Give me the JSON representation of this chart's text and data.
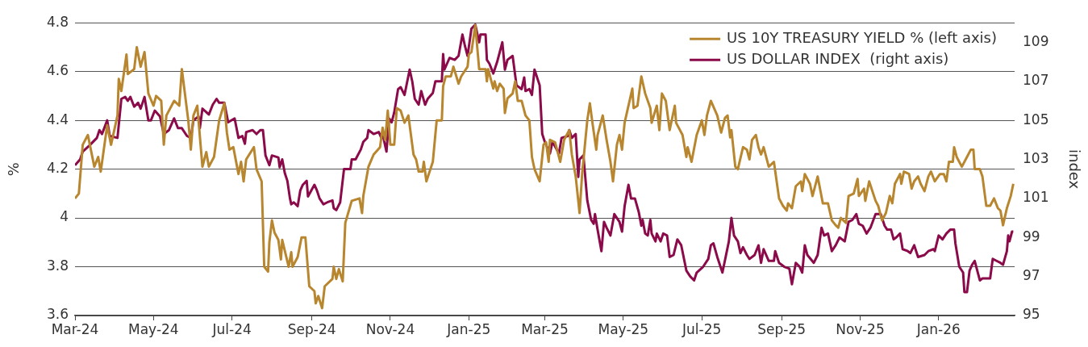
{
  "chart_data": {
    "type": "line",
    "ylabel": "%",
    "y2label": "index",
    "legend": "top right",
    "grid": "y",
    "marker": "none",
    "line_style": "solid",
    "xlim": [
      "2024-03-01",
      "2026-03-01"
    ],
    "xticks": [
      {
        "value": "2024-03-01",
        "label": "Mar-24"
      },
      {
        "value": "2024-05-01",
        "label": "May-24"
      },
      {
        "value": "2024-07-01",
        "label": "Jul-24"
      },
      {
        "value": "2024-09-01",
        "label": "Sep-24"
      },
      {
        "value": "2024-11-01",
        "label": "Nov-24"
      },
      {
        "value": "2025-01-01",
        "label": "Jan-25"
      },
      {
        "value": "2025-03-01",
        "label": "Mar-25"
      },
      {
        "value": "2025-05-01",
        "label": "May-25"
      },
      {
        "value": "2025-07-01",
        "label": "Jul-25"
      },
      {
        "value": "2025-09-01",
        "label": "Sep-25"
      },
      {
        "value": "2025-11-01",
        "label": "Nov-25"
      },
      {
        "value": "2026-01-01",
        "label": "Jan-26"
      }
    ],
    "ylim": [
      3.6,
      4.8
    ],
    "yticks": [
      3.6,
      3.8,
      4,
      4.2,
      4.4,
      4.6,
      4.8
    ],
    "y2lim": [
      95,
      110
    ],
    "y2ticks": [
      95,
      97,
      99,
      101,
      103,
      105,
      107,
      109
    ],
    "series": [
      {
        "name": "US 10Y TREASURY YIELD % (left axis)",
        "color": "#b8862f",
        "x": [
          "2024-03-01",
          "2024-03-04",
          "2024-03-07",
          "2024-03-11",
          "2024-03-16",
          "2024-03-19",
          "2024-03-21",
          "2024-03-26",
          "2024-03-29",
          "2024-04-03",
          "2024-04-04",
          "2024-04-06",
          "2024-04-10",
          "2024-04-11",
          "2024-04-16",
          "2024-04-18",
          "2024-04-21",
          "2024-04-24",
          "2024-04-27",
          "2024-05-01",
          "2024-05-03",
          "2024-05-07",
          "2024-05-09",
          "2024-05-11",
          "2024-05-17",
          "2024-05-21",
          "2024-05-23",
          "2024-05-28",
          "2024-05-30",
          "2024-06-01",
          "2024-06-04",
          "2024-06-08",
          "2024-06-11",
          "2024-06-13",
          "2024-06-17",
          "2024-06-21",
          "2024-06-25",
          "2024-06-27",
          "2024-06-29",
          "2024-07-02",
          "2024-07-06",
          "2024-07-08",
          "2024-07-10",
          "2024-07-12",
          "2024-07-18",
          "2024-07-20",
          "2024-07-24",
          "2024-07-26",
          "2024-07-29",
          "2024-07-30",
          "2024-08-01",
          "2024-08-03",
          "2024-08-06",
          "2024-08-08",
          "2024-08-09",
          "2024-08-14",
          "2024-08-16",
          "2024-08-17",
          "2024-08-21",
          "2024-08-24",
          "2024-08-27",
          "2024-08-30",
          "2024-09-03",
          "2024-09-04",
          "2024-09-06",
          "2024-09-09",
          "2024-09-11",
          "2024-09-17",
          "2024-09-18",
          "2024-09-20",
          "2024-09-22",
          "2024-09-25",
          "2024-09-27",
          "2024-10-02",
          "2024-10-08",
          "2024-10-10",
          "2024-10-11",
          "2024-10-15",
          "2024-10-19",
          "2024-10-24",
          "2024-10-26",
          "2024-10-28",
          "2024-10-30",
          "2024-11-01",
          "2024-11-04",
          "2024-11-06",
          "2024-11-09",
          "2024-11-12",
          "2024-11-15",
          "2024-11-19",
          "2024-11-21",
          "2024-11-23",
          "2024-11-26",
          "2024-11-27",
          "2024-11-29",
          "2024-12-04",
          "2024-12-07",
          "2024-12-11",
          "2024-12-12",
          "2024-12-14",
          "2024-12-18",
          "2024-12-20",
          "2024-12-24",
          "2024-12-26",
          "2024-12-31",
          "2025-01-01",
          "2025-01-03",
          "2025-01-06",
          "2025-01-09",
          "2025-01-14",
          "2025-01-15",
          "2025-01-16",
          "2025-01-20",
          "2025-01-21",
          "2025-01-23",
          "2025-01-25",
          "2025-01-28",
          "2025-01-29",
          "2025-01-31",
          "2025-02-04",
          "2025-02-06",
          "2025-02-08",
          "2025-02-11",
          "2025-02-14",
          "2025-02-17",
          "2025-02-19",
          "2025-02-21",
          "2025-02-25",
          "2025-02-28",
          "2025-03-02",
          "2025-03-04",
          "2025-03-05",
          "2025-03-09",
          "2025-03-13",
          "2025-03-16",
          "2025-03-20",
          "2025-03-22",
          "2025-03-25",
          "2025-03-28",
          "2025-03-30",
          "2025-04-01",
          "2025-04-03",
          "2025-04-05",
          "2025-04-07",
          "2025-04-10",
          "2025-04-11",
          "2025-04-15",
          "2025-04-18",
          "2025-04-21",
          "2025-04-23",
          "2025-04-26",
          "2025-04-28",
          "2025-04-30",
          "2025-05-02",
          "2025-05-08",
          "2025-05-09",
          "2025-05-12",
          "2025-05-15",
          "2025-05-18",
          "2025-05-22",
          "2025-05-23",
          "2025-05-27",
          "2025-05-29",
          "2025-05-31",
          "2025-06-03",
          "2025-06-06",
          "2025-06-10",
          "2025-06-11",
          "2025-06-16",
          "2025-06-19",
          "2025-06-20",
          "2025-06-23",
          "2025-06-27",
          "2025-07-01",
          "2025-07-03",
          "2025-07-05",
          "2025-07-08",
          "2025-07-13",
          "2025-07-16",
          "2025-07-19",
          "2025-07-21",
          "2025-07-23",
          "2025-07-24",
          "2025-07-27",
          "2025-07-29",
          "2025-08-02",
          "2025-08-05",
          "2025-08-07",
          "2025-08-09",
          "2025-08-12",
          "2025-08-14",
          "2025-08-16",
          "2025-08-18",
          "2025-08-22",
          "2025-08-26",
          "2025-08-30",
          "2025-09-02",
          "2025-09-05",
          "2025-09-06",
          "2025-09-09",
          "2025-09-12",
          "2025-09-16",
          "2025-09-17",
          "2025-09-19",
          "2025-09-23",
          "2025-09-25",
          "2025-09-29",
          "2025-10-03",
          "2025-10-07",
          "2025-10-10",
          "2025-10-13",
          "2025-10-15",
          "2025-10-17",
          "2025-10-21",
          "2025-10-23",
          "2025-10-27",
          "2025-10-30",
          "2025-10-31",
          "2025-11-04",
          "2025-11-05",
          "2025-11-08",
          "2025-11-13",
          "2025-11-15",
          "2025-11-18",
          "2025-11-21",
          "2025-11-24",
          "2025-11-26",
          "2025-11-28",
          "2025-12-02",
          "2025-12-03",
          "2025-12-05",
          "2025-12-09",
          "2025-12-11",
          "2025-12-13",
          "2025-12-16",
          "2025-12-18",
          "2025-12-21",
          "2025-12-24",
          "2025-12-26",
          "2025-12-29",
          "2026-01-02",
          "2026-01-05",
          "2026-01-07",
          "2026-01-09",
          "2026-01-12",
          "2026-01-13",
          "2026-01-15",
          "2026-01-19",
          "2026-01-23",
          "2026-01-26",
          "2026-01-28",
          "2026-01-29",
          "2026-02-02",
          "2026-02-04",
          "2026-02-07",
          "2026-02-10",
          "2026-02-13",
          "2026-02-16",
          "2026-02-18",
          "2026-02-20",
          "2026-02-23",
          "2026-02-26",
          "2026-02-28"
        ],
        "values": [
          4.08,
          4.1,
          4.3,
          4.34,
          4.21,
          4.25,
          4.19,
          4.38,
          4.3,
          4.42,
          4.57,
          4.52,
          4.67,
          4.59,
          4.61,
          4.7,
          4.62,
          4.68,
          4.51,
          4.46,
          4.5,
          4.48,
          4.3,
          4.42,
          4.48,
          4.46,
          4.61,
          4.4,
          4.28,
          4.42,
          4.46,
          4.21,
          4.27,
          4.21,
          4.25,
          4.4,
          4.47,
          4.35,
          4.28,
          4.29,
          4.18,
          4.23,
          4.15,
          4.24,
          4.29,
          4.2,
          4.15,
          3.8,
          3.78,
          3.9,
          3.99,
          3.94,
          3.91,
          3.83,
          3.91,
          3.8,
          3.86,
          3.8,
          3.84,
          3.92,
          3.92,
          3.72,
          3.7,
          3.65,
          3.68,
          3.63,
          3.72,
          3.75,
          3.8,
          3.75,
          3.79,
          3.74,
          3.98,
          4.07,
          4.08,
          4.02,
          4.09,
          4.21,
          4.26,
          4.29,
          4.37,
          4.32,
          4.44,
          4.3,
          4.3,
          4.45,
          4.44,
          4.39,
          4.42,
          4.26,
          4.24,
          4.19,
          4.19,
          4.23,
          4.15,
          4.23,
          4.4,
          4.4,
          4.54,
          4.58,
          4.58,
          4.62,
          4.55,
          4.58,
          4.62,
          4.67,
          4.68,
          4.79,
          4.61,
          4.61,
          4.56,
          4.61,
          4.53,
          4.56,
          4.52,
          4.55,
          4.53,
          4.43,
          4.49,
          4.51,
          4.56,
          4.48,
          4.48,
          4.42,
          4.4,
          4.25,
          4.2,
          4.15,
          4.3,
          4.31,
          4.23,
          4.32,
          4.31,
          4.23,
          4.32,
          4.36,
          4.26,
          4.17,
          4.02,
          4.18,
          4.29,
          4.4,
          4.47,
          4.39,
          4.28,
          4.34,
          4.42,
          4.32,
          4.23,
          4.15,
          4.3,
          4.34,
          4.28,
          4.39,
          4.53,
          4.45,
          4.46,
          4.58,
          4.51,
          4.45,
          4.39,
          4.46,
          4.36,
          4.51,
          4.48,
          4.36,
          4.46,
          4.39,
          4.34,
          4.25,
          4.29,
          4.23,
          4.34,
          4.4,
          4.34,
          4.42,
          4.48,
          4.42,
          4.35,
          4.41,
          4.42,
          4.33,
          4.36,
          4.21,
          4.2,
          4.29,
          4.28,
          4.24,
          4.32,
          4.34,
          4.29,
          4.26,
          4.29,
          4.21,
          4.23,
          4.08,
          4.05,
          4.03,
          4.06,
          4.04,
          4.13,
          4.15,
          4.11,
          4.18,
          4.14,
          4.09,
          4.17,
          4.06,
          4.06,
          3.99,
          3.97,
          3.96,
          4.0,
          3.98,
          4.09,
          4.1,
          4.16,
          4.09,
          4.12,
          4.07,
          4.15,
          4.07,
          4.05,
          3.99,
          4.02,
          4.09,
          4.06,
          4.14,
          4.18,
          4.14,
          4.19,
          4.18,
          4.12,
          4.15,
          4.17,
          4.14,
          4.11,
          4.17,
          4.19,
          4.15,
          4.18,
          4.18,
          4.15,
          4.23,
          4.23,
          4.29,
          4.25,
          4.21,
          4.25,
          4.28,
          4.28,
          4.2,
          4.2,
          4.17,
          4.05,
          4.05,
          4.08,
          4.04,
          4.03,
          3.97,
          4.04,
          4.09,
          4.14
        ]
      },
      {
        "name": "US DOLLAR INDEX  (right axis)",
        "color": "#8b0a4a",
        "axis": "y2",
        "x": [
          "2024-03-01",
          "2024-03-05",
          "2024-03-07",
          "2024-03-12",
          "2024-03-18",
          "2024-03-20",
          "2024-03-22",
          "2024-03-26",
          "2024-03-28",
          "2024-04-03",
          "2024-04-06",
          "2024-04-09",
          "2024-04-11",
          "2024-04-13",
          "2024-04-16",
          "2024-04-19",
          "2024-04-21",
          "2024-04-24",
          "2024-04-27",
          "2024-04-29",
          "2024-05-02",
          "2024-05-06",
          "2024-05-09",
          "2024-05-13",
          "2024-05-17",
          "2024-05-20",
          "2024-05-23",
          "2024-05-27",
          "2024-05-30",
          "2024-06-01",
          "2024-06-05",
          "2024-06-06",
          "2024-06-08",
          "2024-06-13",
          "2024-06-16",
          "2024-06-19",
          "2024-06-21",
          "2024-06-25",
          "2024-06-28",
          "2024-07-03",
          "2024-07-06",
          "2024-07-09",
          "2024-07-11",
          "2024-07-12",
          "2024-07-17",
          "2024-07-20",
          "2024-07-23",
          "2024-07-25",
          "2024-07-27",
          "2024-07-30",
          "2024-08-01",
          "2024-08-06",
          "2024-08-07",
          "2024-08-09",
          "2024-08-11",
          "2024-08-13",
          "2024-08-15",
          "2024-08-16",
          "2024-08-18",
          "2024-08-21",
          "2024-08-23",
          "2024-08-25",
          "2024-08-28",
          "2024-08-29",
          "2024-09-03",
          "2024-09-05",
          "2024-09-07",
          "2024-09-10",
          "2024-09-13",
          "2024-09-17",
          "2024-09-18",
          "2024-09-20",
          "2024-09-23",
          "2024-09-26",
          "2024-10-01",
          "2024-10-02",
          "2024-10-05",
          "2024-10-09",
          "2024-10-11",
          "2024-10-14",
          "2024-10-15",
          "2024-10-19",
          "2024-10-23",
          "2024-10-25",
          "2024-10-26",
          "2024-10-29",
          "2024-10-31",
          "2024-11-02",
          "2024-11-04",
          "2024-11-07",
          "2024-11-09",
          "2024-11-12",
          "2024-11-16",
          "2024-11-18",
          "2024-11-20",
          "2024-11-23",
          "2024-11-25",
          "2024-11-28",
          "2024-11-30",
          "2024-12-04",
          "2024-12-06",
          "2024-12-11",
          "2024-12-12",
          "2024-12-13",
          "2024-12-17",
          "2024-12-21",
          "2024-12-24",
          "2024-12-27",
          "2024-12-29",
          "2024-12-31",
          "2025-01-03",
          "2025-01-06",
          "2025-01-09",
          "2025-01-10",
          "2025-01-14",
          "2025-01-15",
          "2025-01-17",
          "2025-01-20",
          "2025-01-23",
          "2025-01-27",
          "2025-01-29",
          "2025-01-31",
          "2025-02-04",
          "2025-02-07",
          "2025-02-11",
          "2025-02-13",
          "2025-02-14",
          "2025-02-17",
          "2025-02-19",
          "2025-02-21",
          "2025-02-25",
          "2025-02-27",
          "2025-03-01",
          "2025-03-05",
          "2025-03-07",
          "2025-03-12",
          "2025-03-14",
          "2025-03-19",
          "2025-03-20",
          "2025-03-22",
          "2025-03-25",
          "2025-03-27",
          "2025-03-28",
          "2025-03-31",
          "2025-04-03",
          "2025-04-06",
          "2025-04-08",
          "2025-04-09",
          "2025-04-11",
          "2025-04-14",
          "2025-04-16",
          "2025-04-18",
          "2025-04-21",
          "2025-04-24",
          "2025-04-28",
          "2025-04-30",
          "2025-05-02",
          "2025-05-05",
          "2025-05-07",
          "2025-05-10",
          "2025-05-13",
          "2025-05-15",
          "2025-05-16",
          "2025-05-18",
          "2025-05-20",
          "2025-05-22",
          "2025-05-23",
          "2025-05-26",
          "2025-05-27",
          "2025-05-30",
          "2025-06-01",
          "2025-06-04",
          "2025-06-06",
          "2025-06-09",
          "2025-06-12",
          "2025-06-15",
          "2025-06-19",
          "2025-06-22",
          "2025-06-25",
          "2025-06-27",
          "2025-07-02",
          "2025-07-06",
          "2025-07-08",
          "2025-07-10",
          "2025-07-13",
          "2025-07-17",
          "2025-07-22",
          "2025-07-24",
          "2025-07-26",
          "2025-07-29",
          "2025-07-31",
          "2025-08-02",
          "2025-08-05",
          "2025-08-07",
          "2025-08-11",
          "2025-08-14",
          "2025-08-16",
          "2025-08-18",
          "2025-08-22",
          "2025-08-26",
          "2025-08-27",
          "2025-08-30",
          "2025-09-03",
          "2025-09-07",
          "2025-09-09",
          "2025-09-12",
          "2025-09-15",
          "2025-09-17",
          "2025-09-19",
          "2025-09-21",
          "2025-09-26",
          "2025-09-29",
          "2025-10-02",
          "2025-10-04",
          "2025-10-07",
          "2025-10-10",
          "2025-10-13",
          "2025-10-16",
          "2025-10-20",
          "2025-10-23",
          "2025-10-26",
          "2025-10-29",
          "2025-10-31",
          "2025-11-03",
          "2025-11-06",
          "2025-11-09",
          "2025-11-13",
          "2025-11-17",
          "2025-11-20",
          "2025-11-22",
          "2025-11-25",
          "2025-11-27",
          "2025-11-29",
          "2025-12-02",
          "2025-12-04",
          "2025-12-08",
          "2025-12-10",
          "2025-12-13",
          "2025-12-16",
          "2025-12-21",
          "2025-12-24",
          "2025-12-28",
          "2025-12-29",
          "2026-01-01",
          "2026-01-04",
          "2026-01-07",
          "2026-01-10",
          "2026-01-13",
          "2026-01-14",
          "2026-01-17",
          "2026-01-20",
          "2026-01-21",
          "2026-01-23",
          "2026-01-25",
          "2026-01-27",
          "2026-01-29",
          "2026-02-02",
          "2026-02-04",
          "2026-02-10",
          "2026-02-12",
          "2026-02-15",
          "2026-02-18",
          "2026-02-20",
          "2026-02-23",
          "2026-02-24",
          "2026-02-25",
          "2026-02-27",
          "2026-02-28"
        ],
        "values": [
          102.7,
          103.0,
          103.4,
          103.7,
          104.1,
          104.5,
          104.3,
          105.0,
          104.2,
          104.1,
          106.1,
          106.2,
          106.0,
          106.2,
          105.7,
          105.9,
          105.6,
          106.2,
          105.0,
          105.0,
          105.5,
          105.2,
          104.3,
          104.5,
          105.1,
          104.6,
          104.6,
          104.2,
          104.1,
          105.0,
          105.2,
          104.6,
          105.6,
          105.3,
          105.8,
          106.1,
          105.9,
          105.9,
          104.9,
          105.1,
          104.1,
          104.2,
          103.8,
          104.4,
          104.5,
          104.3,
          104.5,
          104.5,
          103.2,
          102.7,
          103.2,
          103.1,
          102.6,
          103.0,
          102.3,
          101.9,
          101.0,
          100.7,
          100.8,
          100.6,
          101.4,
          101.7,
          101.9,
          101.1,
          101.7,
          101.4,
          101.0,
          100.7,
          100.8,
          100.9,
          100.5,
          100.4,
          100.8,
          102.5,
          102.5,
          103.0,
          103.0,
          103.5,
          103.9,
          104.1,
          104.5,
          104.3,
          104.4,
          104.1,
          104.3,
          103.4,
          105.1,
          104.9,
          105.4,
          106.6,
          106.7,
          106.3,
          107.6,
          107.0,
          106.1,
          105.8,
          106.5,
          105.8,
          106.1,
          106.4,
          107.0,
          107.0,
          108.4,
          107.6,
          108.2,
          108.1,
          108.3,
          109.4,
          108.8,
          108.3,
          109.7,
          109.9,
          109.0,
          109.4,
          109.4,
          108.1,
          107.9,
          107.4,
          108.0,
          109.0,
          107.6,
          108.1,
          108.3,
          106.8,
          106.6,
          107.2,
          106.5,
          106.6,
          106.3,
          107.6,
          106.8,
          104.3,
          103.9,
          103.3,
          103.9,
          103.3,
          104.1,
          104.2,
          104.5,
          104.1,
          104.3,
          102.1,
          103.0,
          103.2,
          100.9,
          99.9,
          99.7,
          100.2,
          99.4,
          98.3,
          99.8,
          99.5,
          99.1,
          100.2,
          99.8,
          99.3,
          100.6,
          101.7,
          101.0,
          101.0,
          100.3,
          99.6,
          99.9,
          99.2,
          99.1,
          99.9,
          99.2,
          98.8,
          99.2,
          98.8,
          99.2,
          99.1,
          98.0,
          98.1,
          98.9,
          98.6,
          97.3,
          97.0,
          96.8,
          97.2,
          97.5,
          97.9,
          98.6,
          98.7,
          98.0,
          97.2,
          98.8,
          100.0,
          99.1,
          98.8,
          98.2,
          98.5,
          98.1,
          97.9,
          98.1,
          98.6,
          97.7,
          98.4,
          97.8,
          97.8,
          98.3,
          97.7,
          97.5,
          97.4,
          96.6,
          97.7,
          97.5,
          97.2,
          98.6,
          98.1,
          97.7,
          98.1,
          99.5,
          99.1,
          99.2,
          98.3,
          98.6,
          99.0,
          98.8,
          99.8,
          99.9,
          100.2,
          99.7,
          99.6,
          99.2,
          99.5,
          100.2,
          100.2,
          99.6,
          99.4,
          99.4,
          98.9,
          99.0,
          99.2,
          98.4,
          98.3,
          98.2,
          98.6,
          98.0,
          98.1,
          98.3,
          98.4,
          98.3,
          99.1,
          98.9,
          99.2,
          99.4,
          99.4,
          98.7,
          97.5,
          97.2,
          96.2,
          96.2,
          97.3,
          97.6,
          97.8,
          96.8,
          96.9,
          96.9,
          97.9,
          97.8,
          97.7,
          97.6,
          98.3,
          99.1,
          98.8,
          99.3,
          99.3
        ]
      }
    ]
  }
}
